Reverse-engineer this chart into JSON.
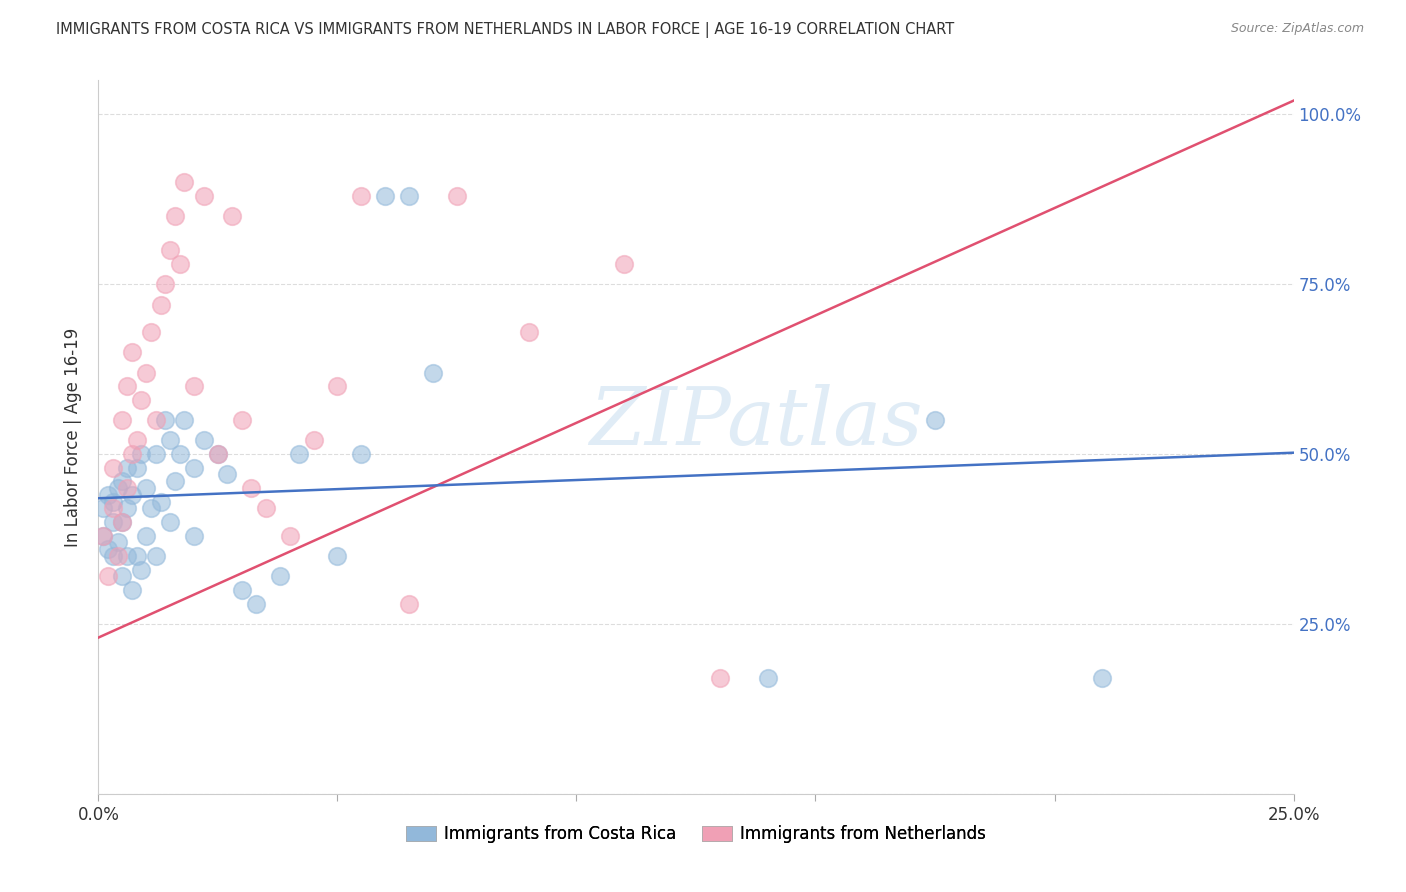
{
  "title": "IMMIGRANTS FROM COSTA RICA VS IMMIGRANTS FROM NETHERLANDS IN LABOR FORCE | AGE 16-19 CORRELATION CHART",
  "source": "Source: ZipAtlas.com",
  "ylabel": "In Labor Force | Age 16-19",
  "xlim": [
    0.0,
    0.25
  ],
  "ylim": [
    0.0,
    1.05
  ],
  "xticks": [
    0.0,
    0.05,
    0.1,
    0.15,
    0.2,
    0.25
  ],
  "yticks": [
    0.0,
    0.25,
    0.5,
    0.75,
    1.0
  ],
  "xtick_labels": [
    "0.0%",
    "",
    "",
    "",
    "",
    "25.0%"
  ],
  "ytick_labels_right": [
    "",
    "25.0%",
    "50.0%",
    "75.0%",
    "100.0%"
  ],
  "watermark": "ZIPatlas",
  "costa_rica_color": "#92b8da",
  "netherlands_color": "#f0a0b5",
  "costa_rica_line_color": "#4472c4",
  "netherlands_line_color": "#e05070",
  "costa_rica_scatter_x": [
    0.001,
    0.001,
    0.002,
    0.002,
    0.003,
    0.003,
    0.003,
    0.004,
    0.004,
    0.005,
    0.005,
    0.005,
    0.006,
    0.006,
    0.006,
    0.007,
    0.007,
    0.008,
    0.008,
    0.009,
    0.009,
    0.01,
    0.01,
    0.011,
    0.012,
    0.012,
    0.013,
    0.014,
    0.015,
    0.015,
    0.016,
    0.017,
    0.018,
    0.02,
    0.02,
    0.022,
    0.025,
    0.027,
    0.03,
    0.033,
    0.038,
    0.042,
    0.05,
    0.055,
    0.06,
    0.065,
    0.07,
    0.14,
    0.175,
    0.21
  ],
  "costa_rica_scatter_y": [
    0.38,
    0.42,
    0.36,
    0.44,
    0.35,
    0.4,
    0.43,
    0.37,
    0.45,
    0.32,
    0.4,
    0.46,
    0.35,
    0.42,
    0.48,
    0.3,
    0.44,
    0.35,
    0.48,
    0.33,
    0.5,
    0.38,
    0.45,
    0.42,
    0.35,
    0.5,
    0.43,
    0.55,
    0.4,
    0.52,
    0.46,
    0.5,
    0.55,
    0.48,
    0.38,
    0.52,
    0.5,
    0.47,
    0.3,
    0.28,
    0.32,
    0.5,
    0.35,
    0.5,
    0.88,
    0.88,
    0.62,
    0.17,
    0.55,
    0.17
  ],
  "netherlands_scatter_x": [
    0.001,
    0.002,
    0.003,
    0.003,
    0.004,
    0.005,
    0.005,
    0.006,
    0.006,
    0.007,
    0.007,
    0.008,
    0.009,
    0.01,
    0.011,
    0.012,
    0.013,
    0.014,
    0.015,
    0.016,
    0.017,
    0.018,
    0.02,
    0.022,
    0.025,
    0.028,
    0.03,
    0.032,
    0.035,
    0.04,
    0.045,
    0.05,
    0.055,
    0.065,
    0.075,
    0.09,
    0.11,
    0.13
  ],
  "netherlands_scatter_y": [
    0.38,
    0.32,
    0.42,
    0.48,
    0.35,
    0.4,
    0.55,
    0.45,
    0.6,
    0.5,
    0.65,
    0.52,
    0.58,
    0.62,
    0.68,
    0.55,
    0.72,
    0.75,
    0.8,
    0.85,
    0.78,
    0.9,
    0.6,
    0.88,
    0.5,
    0.85,
    0.55,
    0.45,
    0.42,
    0.38,
    0.52,
    0.6,
    0.88,
    0.28,
    0.88,
    0.68,
    0.78,
    0.17
  ],
  "nl_line_x0": 0.0,
  "nl_line_y0": 0.23,
  "nl_line_x1": 0.25,
  "nl_line_y1": 1.02,
  "cr_line_x0": 0.0,
  "cr_line_y0": 0.435,
  "cr_line_x1": 0.25,
  "cr_line_y1": 0.502,
  "background_color": "#ffffff",
  "grid_color": "#dddddd"
}
